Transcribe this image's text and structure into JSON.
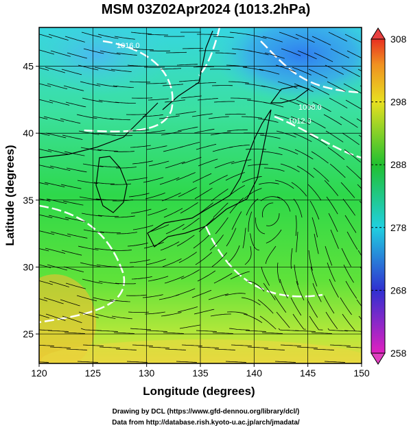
{
  "header": {
    "title": "MSM 03Z02Apr2024 (1013.2hPa)"
  },
  "map": {
    "x_label": "Longitude (degrees)",
    "y_label": "Latitude  (degrees)",
    "xlim": [
      120,
      150
    ],
    "ylim": [
      22.8,
      47.9
    ],
    "xticks": [
      120,
      125,
      130,
      135,
      140,
      145,
      150
    ],
    "yticks": [
      25,
      30,
      35,
      40,
      45
    ],
    "contour_labels": [
      "1016.0",
      "1008.0",
      "1012.0"
    ]
  },
  "colorbar": {
    "lim": [
      258,
      308
    ],
    "ticks": [
      258,
      268,
      278,
      288,
      298,
      308
    ]
  },
  "footer": {
    "credit": "Drawing by DCL (https://www.gfd-dennou.org/library/dcl/)",
    "source": "Data from http://database.rish.kyoto-u.ac.jp/arch/jmadata/"
  }
}
